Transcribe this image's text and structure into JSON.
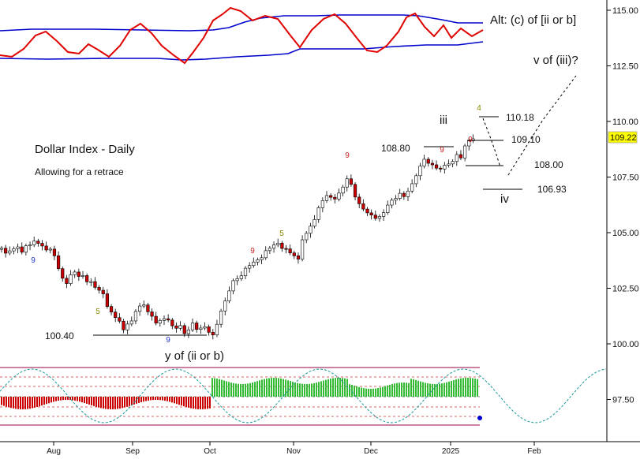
{
  "chart_data": {
    "type": "candlestick",
    "title": "Dollar Index - Daily",
    "subtitle": "Allowing for a retrace",
    "y_axis": {
      "ticks": [
        "115.00",
        "112.50",
        "110.00",
        "107.50",
        "105.00",
        "102.50",
        "100.00",
        "97.50"
      ],
      "range": [
        96.2,
        115.8
      ]
    },
    "x_axis": {
      "ticks": [
        "Aug",
        "Sep",
        "Oct",
        "Nov",
        "Dec",
        "2025",
        "Feb"
      ]
    },
    "last_price": "109.22",
    "colors": {
      "up_candle": "#ffffff",
      "down_candle": "#cc0000",
      "band_line": "#0000cc",
      "oscillator": "#e00000",
      "cycle": "#1a9a9a",
      "bull_histogram": "#33bb33",
      "bear_histogram": "#cc0000",
      "price_badge": "#ffff00"
    },
    "closes": [
      104.3,
      104.08,
      104.18,
      104.28,
      104.36,
      104.12,
      104.41,
      104.45,
      104.62,
      104.52,
      104.4,
      104.22,
      104.26,
      103.96,
      103.38,
      102.95,
      102.71,
      103.11,
      103.23,
      103.03,
      103.07,
      102.79,
      102.8,
      102.54,
      102.41,
      102.25,
      101.68,
      101.43,
      101.18,
      101.02,
      100.63,
      100.89,
      101.03,
      101.46,
      101.7,
      101.75,
      101.44,
      101.24,
      100.93,
      101.05,
      101.13,
      101.07,
      100.81,
      100.7,
      100.82,
      100.46,
      100.63,
      100.94,
      100.65,
      100.71,
      100.77,
      100.52,
      100.4,
      100.88,
      101.48,
      101.93,
      102.38,
      102.84,
      102.93,
      103.06,
      103.4,
      103.52,
      103.68,
      103.78,
      103.87,
      104.19,
      104.3,
      104.45,
      104.53,
      104.29,
      104.27,
      104.09,
      103.96,
      103.81,
      104.68,
      104.97,
      105.29,
      105.59,
      106.12,
      106.44,
      106.67,
      106.59,
      106.51,
      106.78,
      107.05,
      107.42,
      107.17,
      106.6,
      106.3,
      106.06,
      105.89,
      105.79,
      105.64,
      105.73,
      105.9,
      106.24,
      106.46,
      106.54,
      106.77,
      106.62,
      106.87,
      107.2,
      107.56,
      107.99,
      108.3,
      108.12,
      108.05,
      107.9,
      107.86,
      108.03,
      108.09,
      108.2,
      108.51,
      108.36,
      108.9,
      109.13,
      109.22
    ],
    "labels": {
      "price_levels": [
        "110.18",
        "109.10",
        "108.80",
        "108.00",
        "106.93",
        "100.40"
      ],
      "waves": [
        "iii",
        "iv",
        "v of (iii)?",
        "y of (ii or b)",
        "Alt: (c) of [ii or b]"
      ],
      "counts": [
        "9",
        "5",
        "9",
        "5",
        "9",
        "9",
        "9",
        "9",
        "4"
      ]
    }
  }
}
